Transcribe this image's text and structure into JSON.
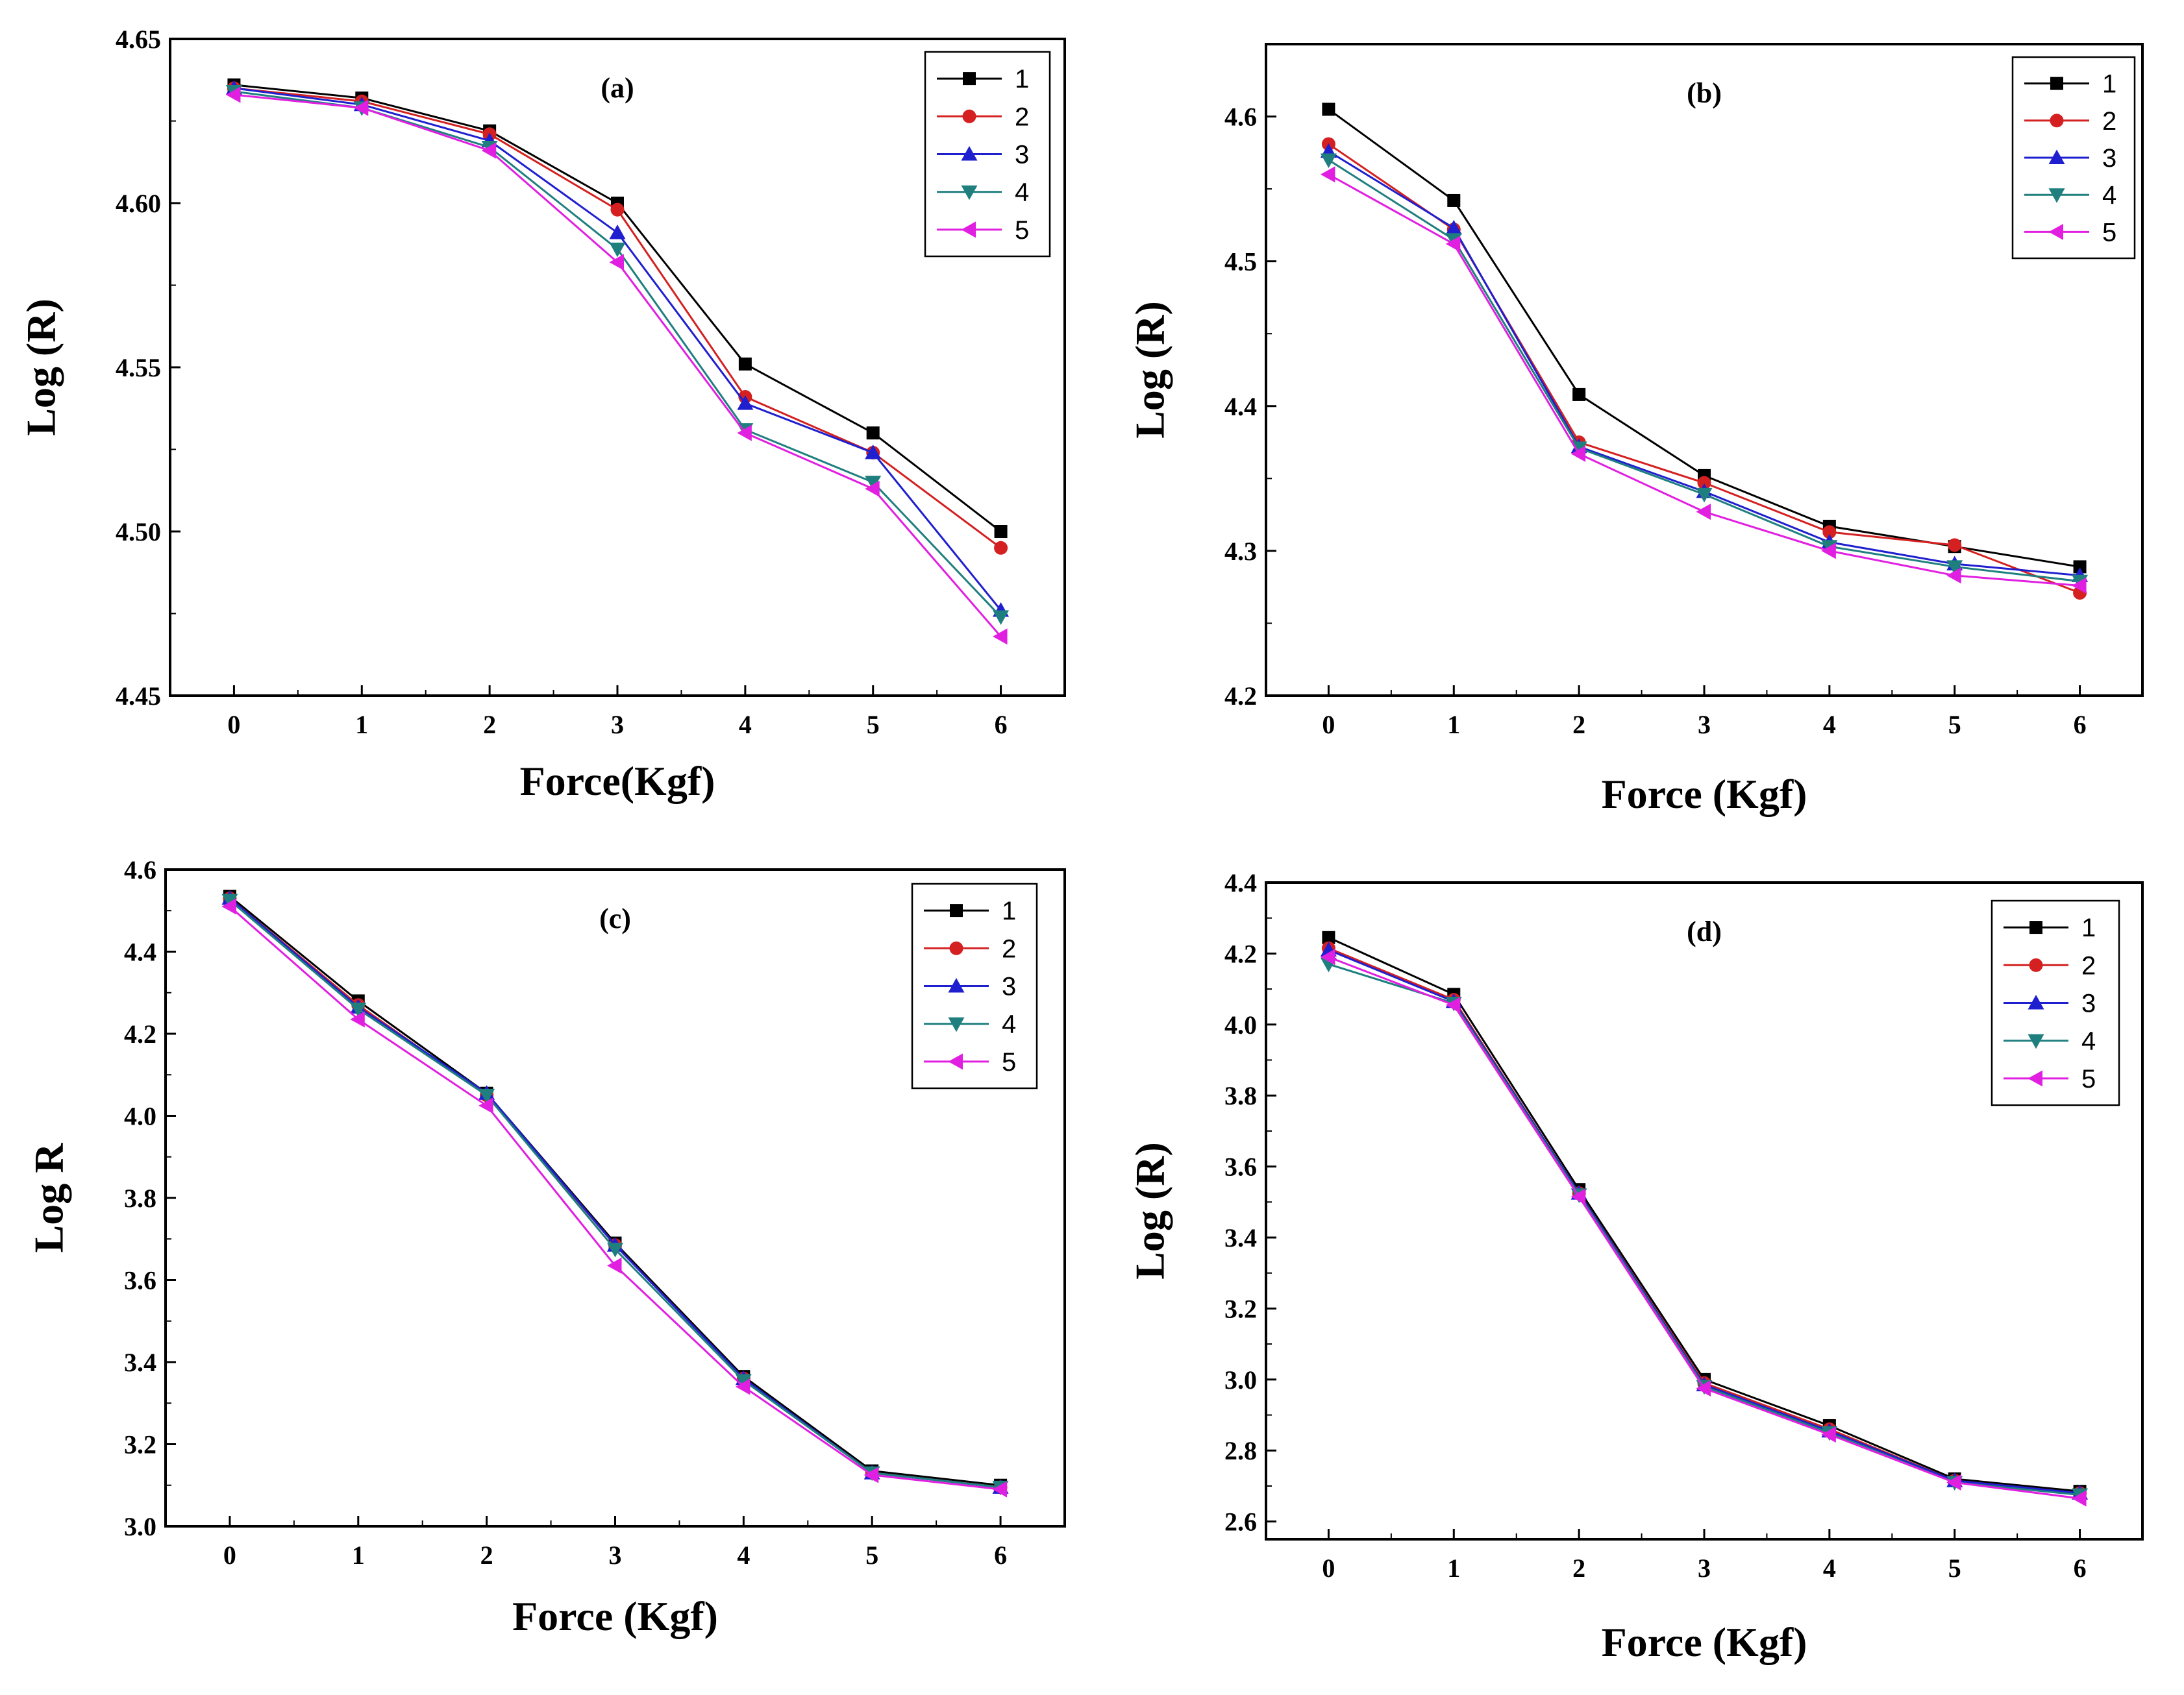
{
  "chart_data": [
    {
      "type": "line",
      "title": "(a)",
      "xlabel": "Force(Kgf)",
      "ylabel": "Log (R)",
      "x": [
        0,
        1,
        2,
        3,
        4,
        5,
        6
      ],
      "xlim": [
        -0.5,
        6.5
      ],
      "ylim": [
        4.45,
        4.65
      ],
      "yticks": [
        4.45,
        4.5,
        4.55,
        4.6,
        4.65
      ],
      "ytick_labels": [
        "4.45",
        "4.50",
        "4.55",
        "4.60",
        "4.65"
      ],
      "xticks": [
        0,
        1,
        2,
        3,
        4,
        5,
        6
      ],
      "xtick_labels": [
        "0",
        "1",
        "2",
        "3",
        "4",
        "5",
        "6"
      ],
      "legend": "top-right",
      "series": [
        {
          "name": "1",
          "values": [
            4.636,
            4.632,
            4.622,
            4.6,
            4.551,
            4.53,
            4.5
          ]
        },
        {
          "name": "2",
          "values": [
            4.635,
            4.631,
            4.621,
            4.598,
            4.541,
            4.524,
            4.495
          ]
        },
        {
          "name": "3",
          "values": [
            4.635,
            4.63,
            4.619,
            4.591,
            4.539,
            4.524,
            4.476
          ]
        },
        {
          "name": "4",
          "values": [
            4.634,
            4.629,
            4.617,
            4.586,
            4.531,
            4.515,
            4.474
          ]
        },
        {
          "name": "5",
          "values": [
            4.633,
            4.629,
            4.616,
            4.582,
            4.53,
            4.513,
            4.468
          ]
        }
      ]
    },
    {
      "type": "line",
      "title": "(b)",
      "xlabel": "Force (Kgf)",
      "ylabel": "Log (R)",
      "x": [
        0,
        1,
        2,
        3,
        4,
        5,
        6
      ],
      "xlim": [
        -0.5,
        6.5
      ],
      "ylim": [
        4.2,
        4.65
      ],
      "yticks": [
        4.2,
        4.3,
        4.4,
        4.5,
        4.6
      ],
      "ytick_labels": [
        "4.2",
        "4.3",
        "4.4",
        "4.5",
        "4.6"
      ],
      "xticks": [
        0,
        1,
        2,
        3,
        4,
        5,
        6
      ],
      "xtick_labels": [
        "0",
        "1",
        "2",
        "3",
        "4",
        "5",
        "6"
      ],
      "legend": "top-right",
      "series": [
        {
          "name": "1",
          "values": [
            4.605,
            4.542,
            4.408,
            4.352,
            4.317,
            4.303,
            4.289
          ]
        },
        {
          "name": "2",
          "values": [
            4.581,
            4.522,
            4.375,
            4.347,
            4.313,
            4.304,
            4.271
          ]
        },
        {
          "name": "3",
          "values": [
            4.576,
            4.523,
            4.372,
            4.341,
            4.306,
            4.291,
            4.283
          ]
        },
        {
          "name": "4",
          "values": [
            4.57,
            4.515,
            4.371,
            4.339,
            4.303,
            4.289,
            4.279
          ]
        },
        {
          "name": "5",
          "values": [
            4.56,
            4.512,
            4.367,
            4.327,
            4.3,
            4.283,
            4.276
          ]
        }
      ]
    },
    {
      "type": "line",
      "title": "(c)",
      "xlabel": "Force (Kgf)",
      "ylabel": "Log R",
      "x": [
        0,
        1,
        2,
        3,
        4,
        5,
        6
      ],
      "xlim": [
        -0.5,
        6.5
      ],
      "ylim": [
        3.0,
        4.6
      ],
      "yticks": [
        3.0,
        3.2,
        3.4,
        3.6,
        3.8,
        4.0,
        4.2,
        4.4,
        4.6
      ],
      "ytick_labels": [
        "3.0",
        "3.2",
        "3.4",
        "3.6",
        "3.8",
        "4.0",
        "4.2",
        "4.4",
        "4.6"
      ],
      "xticks": [
        0,
        1,
        2,
        3,
        4,
        5,
        6
      ],
      "xtick_labels": [
        "0",
        "1",
        "2",
        "3",
        "4",
        "5",
        "6"
      ],
      "legend": "top-right",
      "series": [
        {
          "name": "1",
          "values": [
            4.535,
            4.28,
            4.055,
            3.69,
            3.365,
            3.135,
            3.1
          ]
        },
        {
          "name": "2",
          "values": [
            4.53,
            4.27,
            4.05,
            3.685,
            3.36,
            3.13,
            3.095
          ]
        },
        {
          "name": "3",
          "values": [
            4.53,
            4.265,
            4.055,
            3.685,
            3.36,
            3.13,
            3.095
          ]
        },
        {
          "name": "4",
          "values": [
            4.525,
            4.26,
            4.05,
            3.675,
            3.355,
            3.13,
            3.095
          ]
        },
        {
          "name": "5",
          "values": [
            4.51,
            4.235,
            4.025,
            3.635,
            3.34,
            3.125,
            3.09
          ]
        }
      ]
    },
    {
      "type": "line",
      "title": "(d)",
      "xlabel": "Force (Kgf)",
      "ylabel": "Log (R)",
      "x": [
        0,
        1,
        2,
        3,
        4,
        5,
        6
      ],
      "xlim": [
        -0.5,
        6.5
      ],
      "ylim": [
        2.55,
        4.4
      ],
      "yticks": [
        2.6,
        2.8,
        3.0,
        3.2,
        3.4,
        3.6,
        3.8,
        4.0,
        4.2,
        4.4
      ],
      "ytick_labels": [
        "2.6",
        "2.8",
        "3.0",
        "3.2",
        "3.4",
        "3.6",
        "3.8",
        "4.0",
        "4.2",
        "4.4"
      ],
      "xticks": [
        0,
        1,
        2,
        3,
        4,
        5,
        6
      ],
      "xtick_labels": [
        "0",
        "1",
        "2",
        "3",
        "4",
        "5",
        "6"
      ],
      "legend": "top-right",
      "series": [
        {
          "name": "1",
          "values": [
            4.245,
            4.085,
            3.535,
            3.0,
            2.87,
            2.72,
            2.685
          ]
        },
        {
          "name": "2",
          "values": [
            4.215,
            4.07,
            3.525,
            2.99,
            2.86,
            2.715,
            2.68
          ]
        },
        {
          "name": "3",
          "values": [
            4.21,
            4.065,
            3.525,
            2.985,
            2.855,
            2.715,
            2.68
          ]
        },
        {
          "name": "4",
          "values": [
            4.17,
            4.06,
            3.52,
            2.98,
            2.85,
            2.71,
            2.675
          ]
        },
        {
          "name": "5",
          "values": [
            4.19,
            4.055,
            3.515,
            2.975,
            2.845,
            2.71,
            2.665
          ]
        }
      ]
    }
  ],
  "series_colors": [
    "#000000",
    "#d42020",
    "#1f1fcf",
    "#1f7f7f",
    "#e11fe1"
  ],
  "series_markers": [
    "square",
    "circle",
    "triangle-up",
    "triangle-down",
    "triangle-left"
  ]
}
